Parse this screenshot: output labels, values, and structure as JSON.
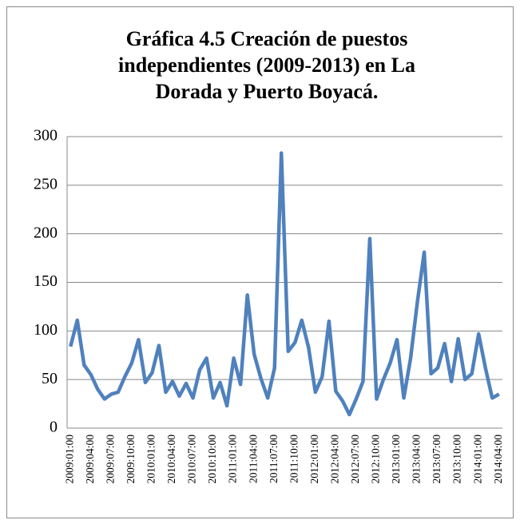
{
  "chart_data": {
    "type": "line",
    "title": [
      "Gráfica 4.5 Creación de puestos",
      "independientes (2009-2013) en La",
      "Dorada y Puerto Boyacá."
    ],
    "categories": [
      "2009:01:00",
      null,
      null,
      "2009:04:00",
      null,
      null,
      "2009:07:00",
      null,
      null,
      "2009:10:00",
      null,
      null,
      "2010:01:00",
      null,
      null,
      "2010:04:00",
      null,
      null,
      "2010:07:00",
      null,
      null,
      "2010:10:00",
      null,
      null,
      "2011:01:00",
      null,
      null,
      "2011:04:00",
      null,
      null,
      "2011:07:00",
      null,
      null,
      "2011:10:00",
      null,
      null,
      "2012:01:00",
      null,
      null,
      "2012:04:00",
      null,
      null,
      "2012:07:00",
      null,
      null,
      "2012:10:00",
      null,
      null,
      "2013:01:00",
      null,
      null,
      "2013:04:00",
      null,
      null,
      "2013:07:00",
      null,
      null,
      "2013:10:00",
      null,
      null,
      "2014:01:00",
      null,
      null,
      "2014:04:00"
    ],
    "series": [
      {
        "color": "#4f81bd",
        "values": [
          84,
          111,
          65,
          55,
          40,
          30,
          35,
          37,
          53,
          67,
          91,
          47,
          57,
          85,
          37,
          48,
          33,
          46,
          31,
          60,
          72,
          31,
          47,
          23,
          72,
          45,
          137,
          76,
          51,
          31,
          62,
          283,
          79,
          88,
          111,
          83,
          37,
          53,
          110,
          38,
          28,
          14,
          30,
          48,
          195,
          30,
          50,
          67,
          91,
          31,
          72,
          130,
          181,
          56,
          62,
          87,
          48,
          92,
          50,
          56,
          97,
          62,
          31,
          35
        ]
      }
    ],
    "ylim": [
      0,
      300
    ],
    "yticks": [
      0,
      50,
      100,
      150,
      200,
      250,
      300
    ],
    "grid": true
  }
}
